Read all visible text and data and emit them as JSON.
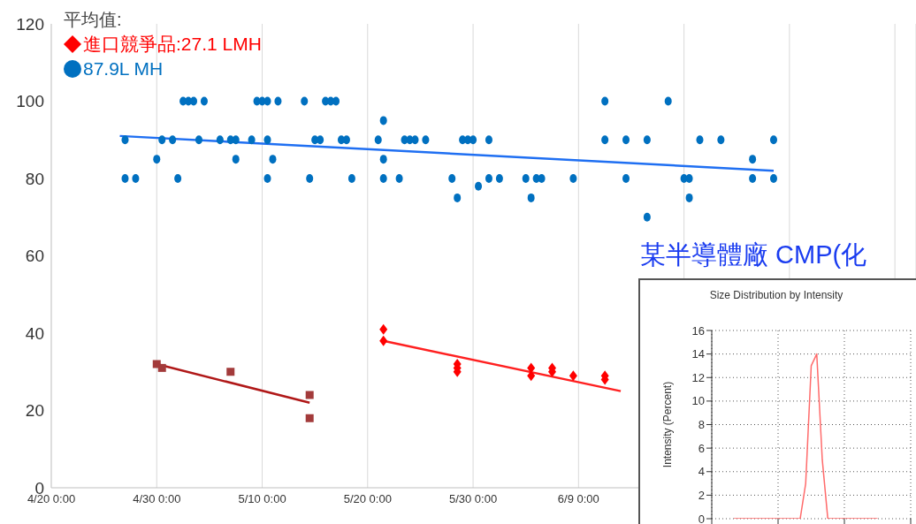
{
  "chart_data": [
    {
      "type": "scatter",
      "legend_title": "平均值:",
      "legend": "top left",
      "grid": "x",
      "xlim": [
        "--04-20",
        "--07-11"
      ],
      "xticks": [
        {
          "value": "--04-20",
          "label": "4/20 0:00"
        },
        {
          "value": "--04-30",
          "label": "4/30 0:00"
        },
        {
          "value": "--05-10",
          "label": "5/10 0:00"
        },
        {
          "value": "--05-20",
          "label": "5/20 0:00"
        },
        {
          "value": "--05-30",
          "label": "5/30 0:00"
        },
        {
          "value": "--06-09",
          "label": "6/9 0:00"
        },
        {
          "value": "--06-19",
          "label": null
        },
        {
          "value": "--06-29",
          "label": null
        },
        {
          "value": "--07-09",
          "label": null
        }
      ],
      "ylim": [
        0,
        120
      ],
      "yticks": [
        0,
        20,
        40,
        60,
        80,
        100,
        120
      ],
      "series": [
        {
          "type": "scatter",
          "marker": "square",
          "color": "#a33b3b",
          "x": [
            "--04-30",
            "--04-30T12:00",
            "--05-07",
            "--05-14T12:00",
            "--05-14T12:00"
          ],
          "values": [
            32,
            31,
            30,
            24,
            18
          ]
        },
        {
          "type": "scatter",
          "marker": "diamond",
          "name": "進口競爭品:27.1 LMH",
          "color": "#ff0000",
          "x": [
            "--05-21T12:00",
            "--05-21T12:00",
            "--05-28T12:00",
            "--05-28T12:00",
            "--05-28T12:00",
            "--06-04T12:00",
            "--06-04T12:00",
            "--06-06T12:00",
            "--06-06T12:00",
            "--06-08T12:00",
            "--06-11T12:00",
            "--06-11T12:00"
          ],
          "values": [
            41,
            38,
            32,
            31,
            30,
            31,
            29,
            31,
            30,
            29,
            28,
            29
          ]
        },
        {
          "type": "scatter",
          "marker": "circle",
          "name": "87.9L MH",
          "color": "#0070c0",
          "x": [
            "--04-27",
            "--04-28",
            "--05-02",
            "--05-10T12:00",
            "--05-14T12:00",
            "--05-18T12:00",
            "--05-21T12:00",
            "--05-23",
            "--05-28",
            "--05-31T12:00",
            "--06-01T12:00",
            "--06-04",
            "--06-05",
            "--06-05T12:00",
            "--06-08T12:00",
            "--06-13T12:00",
            "--06-19",
            "--06-19T12:00",
            "--06-25T12:00",
            "--06-27T12:00",
            "--05-28T12:00",
            "--06-04T12:00",
            "--06-19T12:00",
            "--06-15T12:00",
            "--05-30T12:00",
            "--04-30",
            "--05-07T12:00",
            "--05-11",
            "--05-21T12:00",
            "--06-25T12:00",
            "--04-27",
            "--04-30T12:00",
            "--05-01T12:00",
            "--05-04",
            "--05-06",
            "--05-07",
            "--05-07T12:00",
            "--05-09",
            "--05-10T12:00",
            "--05-15",
            "--05-15T12:00",
            "--05-17T12:00",
            "--05-18",
            "--05-21",
            "--05-23T12:00",
            "--05-24",
            "--05-24T12:00",
            "--05-25T12:00",
            "--05-29",
            "--05-29T12:00",
            "--05-30",
            "--05-31T12:00",
            "--06-11T12:00",
            "--06-13T12:00",
            "--06-15T12:00",
            "--06-20T12:00",
            "--06-22T12:00",
            "--06-27T12:00",
            "--05-21T12:00",
            "--05-02T12:00",
            "--05-03",
            "--05-03T12:00",
            "--05-04T12:00",
            "--05-09T12:00",
            "--05-10",
            "--05-10T12:00",
            "--05-11T12:00",
            "--05-14",
            "--05-16",
            "--05-16T12:00",
            "--05-17",
            "--06-11T12:00",
            "--06-17T12:00"
          ],
          "values": [
            80,
            80,
            80,
            80,
            80,
            80,
            80,
            80,
            80,
            80,
            80,
            80,
            80,
            80,
            80,
            80,
            80,
            80,
            80,
            80,
            75,
            75,
            75,
            70,
            78,
            85,
            85,
            85,
            85,
            85,
            90,
            90,
            90,
            90,
            90,
            90,
            90,
            90,
            90,
            90,
            90,
            90,
            90,
            90,
            90,
            90,
            90,
            90,
            90,
            90,
            90,
            90,
            90,
            90,
            90,
            90,
            90,
            90,
            95,
            100,
            100,
            100,
            100,
            100,
            100,
            100,
            100,
            100,
            100,
            100,
            100,
            100,
            100
          ]
        },
        {
          "type": "line",
          "marker": "none",
          "color": "#b01818",
          "x": [
            "--04-30",
            "--05-14T12:00"
          ],
          "values": [
            32,
            22
          ]
        },
        {
          "type": "line",
          "marker": "none",
          "color": "#ff2020",
          "x": [
            "--05-21T12:00",
            "--06-13"
          ],
          "values": [
            38,
            25
          ]
        },
        {
          "type": "line",
          "marker": "none",
          "color": "#1f6ff2",
          "x": [
            "--04-26T12:00",
            "--06-27T12:00"
          ],
          "values": [
            91,
            82
          ]
        }
      ]
    },
    {
      "type": "line",
      "title": "某半導體廠 CMP(化",
      "subtitle": "Size Distribution by Intensity",
      "ylabel": "Intensity (Percent)",
      "grid": true,
      "tick_labels": "y",
      "marker": "none",
      "line_style": "solid",
      "categories": [
        null,
        null,
        null,
        null,
        null,
        null,
        null,
        null,
        null,
        null,
        null,
        null,
        null,
        null,
        null,
        null,
        null,
        null,
        null,
        null,
        null,
        null,
        null,
        null,
        null,
        null,
        null,
        null,
        null,
        null,
        null,
        null,
        null,
        null,
        null,
        null,
        null
      ],
      "ylim": [
        0,
        16
      ],
      "yticks": [
        0,
        2,
        4,
        6,
        8,
        10,
        12,
        14,
        16
      ],
      "series": [
        {
          "color": "#ff6b6b",
          "values": [
            null,
            null,
            null,
            null,
            0,
            0,
            0,
            0,
            0,
            0,
            0,
            0,
            0,
            0,
            0,
            0,
            0,
            3,
            13,
            14,
            5,
            0,
            0,
            0,
            0,
            0,
            0,
            0,
            0,
            0,
            0,
            null,
            null,
            null,
            null,
            null,
            null
          ]
        }
      ]
    }
  ]
}
